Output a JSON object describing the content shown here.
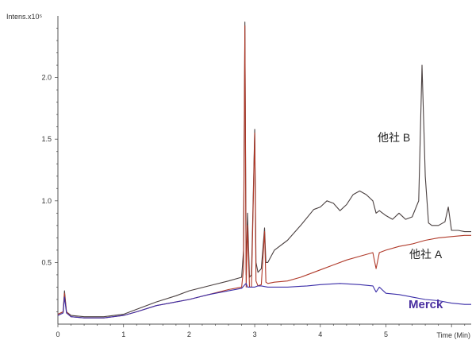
{
  "chart_data": {
    "type": "line",
    "ylabel": "Intens.x10⁵",
    "xlabel": "Time (Min)",
    "xlim": [
      0,
      6.3
    ],
    "ylim": [
      0,
      2.5
    ],
    "xticks": [
      0,
      1,
      2,
      3,
      4,
      5
    ],
    "yticks": [
      0.5,
      1.0,
      1.5,
      2.0
    ],
    "xtick_labels": [
      "0",
      "1",
      "2",
      "3",
      "4",
      "5"
    ],
    "ytick_labels": [
      "0.5",
      "1.0",
      "1.5",
      "2.0"
    ],
    "grid": false,
    "series": [
      {
        "name": "他社 B",
        "color": "#4a4040",
        "x": [
          0.0,
          0.08,
          0.1,
          0.13,
          0.2,
          0.4,
          0.7,
          1.0,
          1.2,
          1.5,
          1.8,
          2.0,
          2.3,
          2.6,
          2.8,
          2.83,
          2.85,
          2.87,
          2.89,
          2.92,
          2.95,
          3.0,
          3.02,
          3.05,
          3.1,
          3.15,
          3.17,
          3.2,
          3.3,
          3.5,
          3.7,
          3.9,
          4.0,
          4.1,
          4.2,
          4.3,
          4.4,
          4.5,
          4.6,
          4.7,
          4.8,
          4.85,
          4.9,
          5.0,
          5.1,
          5.2,
          5.3,
          5.4,
          5.5,
          5.55,
          5.6,
          5.65,
          5.7,
          5.8,
          5.9,
          5.95,
          6.0,
          6.05,
          6.1,
          6.2,
          6.3
        ],
        "y": [
          0.08,
          0.1,
          0.27,
          0.1,
          0.07,
          0.06,
          0.06,
          0.08,
          0.12,
          0.18,
          0.23,
          0.27,
          0.31,
          0.35,
          0.38,
          0.6,
          2.45,
          0.4,
          0.9,
          0.38,
          0.4,
          1.58,
          0.5,
          0.42,
          0.45,
          0.78,
          0.5,
          0.5,
          0.6,
          0.68,
          0.8,
          0.93,
          0.95,
          1.0,
          0.98,
          0.92,
          0.97,
          1.05,
          1.08,
          1.05,
          1.0,
          0.9,
          0.92,
          0.88,
          0.85,
          0.9,
          0.85,
          0.87,
          1.0,
          2.1,
          1.2,
          0.82,
          0.8,
          0.8,
          0.83,
          0.95,
          0.76,
          0.76,
          0.76,
          0.75,
          0.75
        ]
      },
      {
        "name": "他社 A",
        "color": "#b03a2a",
        "x": [
          0.0,
          0.08,
          0.1,
          0.13,
          0.2,
          0.4,
          0.7,
          1.0,
          1.2,
          1.5,
          1.8,
          2.0,
          2.3,
          2.6,
          2.8,
          2.83,
          2.85,
          2.87,
          2.89,
          2.92,
          2.95,
          3.0,
          3.02,
          3.05,
          3.1,
          3.15,
          3.17,
          3.2,
          3.3,
          3.5,
          3.7,
          3.9,
          4.0,
          4.2,
          4.4,
          4.6,
          4.8,
          4.85,
          4.9,
          5.0,
          5.2,
          5.4,
          5.6,
          5.8,
          6.0,
          6.2,
          6.3
        ],
        "y": [
          0.08,
          0.1,
          0.25,
          0.1,
          0.06,
          0.05,
          0.05,
          0.07,
          0.1,
          0.15,
          0.18,
          0.2,
          0.24,
          0.28,
          0.3,
          0.45,
          2.42,
          0.3,
          0.8,
          0.3,
          0.3,
          1.55,
          0.35,
          0.31,
          0.32,
          0.75,
          0.34,
          0.33,
          0.34,
          0.35,
          0.38,
          0.42,
          0.44,
          0.48,
          0.52,
          0.55,
          0.58,
          0.45,
          0.58,
          0.6,
          0.63,
          0.65,
          0.68,
          0.7,
          0.71,
          0.72,
          0.72
        ]
      },
      {
        "name": "Merck",
        "color": "#3b2ea8",
        "x": [
          0.0,
          0.08,
          0.1,
          0.13,
          0.2,
          0.4,
          0.7,
          1.0,
          1.2,
          1.5,
          1.8,
          2.0,
          2.3,
          2.6,
          2.8,
          2.85,
          2.87,
          2.89,
          2.92,
          2.95,
          3.0,
          3.05,
          3.1,
          3.2,
          3.5,
          3.8,
          4.0,
          4.3,
          4.6,
          4.8,
          4.85,
          4.9,
          5.0,
          5.2,
          5.4,
          5.6,
          5.8,
          6.0,
          6.2,
          6.3
        ],
        "y": [
          0.07,
          0.09,
          0.22,
          0.09,
          0.06,
          0.05,
          0.05,
          0.07,
          0.1,
          0.15,
          0.18,
          0.2,
          0.24,
          0.27,
          0.29,
          0.32,
          0.33,
          0.3,
          0.3,
          0.3,
          0.3,
          0.31,
          0.31,
          0.3,
          0.3,
          0.31,
          0.32,
          0.33,
          0.32,
          0.31,
          0.26,
          0.3,
          0.25,
          0.24,
          0.22,
          0.2,
          0.19,
          0.17,
          0.16,
          0.16
        ]
      }
    ],
    "annotations": [
      {
        "text": "他社 B",
        "x": 4.8,
        "y": 1.42,
        "series": 0
      },
      {
        "text": "他社 A",
        "x": 5.3,
        "y": 0.5,
        "series": 1
      },
      {
        "text": "Merck",
        "x": 5.3,
        "y": 0.12,
        "series": 2
      }
    ]
  },
  "labels": {
    "series_b": "他社 B",
    "series_a": "他社 A",
    "merck": "Merck",
    "ylabel": "Intens.x10⁵",
    "xlabel": "Time (Min)"
  },
  "colors": {
    "merck_label": "#4a2fa0",
    "axis": "#555555"
  }
}
